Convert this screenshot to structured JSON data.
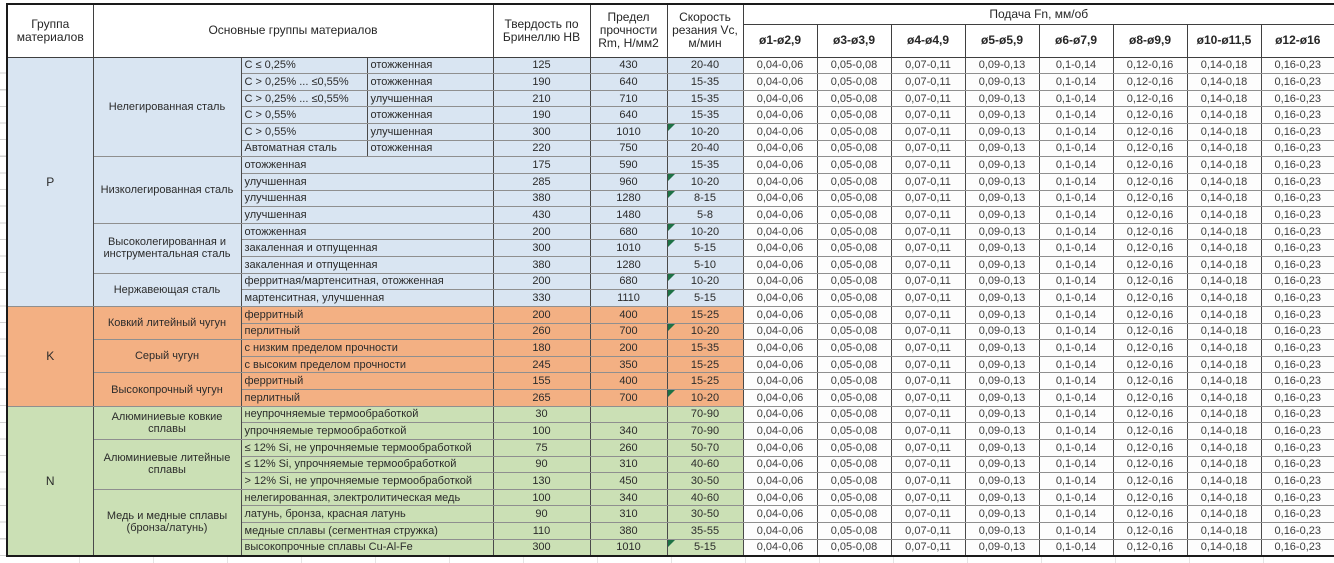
{
  "header": {
    "col_group": "Группа материалов",
    "col_main": "Основные группы материалов",
    "col_hb": "Твердость по Бринеллю HB",
    "col_rm": "Предел прочности Rm, Н/мм2",
    "col_vc": "Скорость резания Vc, м/мин",
    "feed_title": "Подача Fn, мм/об",
    "feed_cols": [
      "ø1-ø2,9",
      "ø3-ø3,9",
      "ø4-ø4,9",
      "ø5-ø5,9",
      "ø6-ø7,9",
      "ø8-ø9,9",
      "ø10-ø11,5",
      "ø12-ø16"
    ]
  },
  "feed_values": [
    "0,04-0,06",
    "0,05-0,08",
    "0,07-0,11",
    "0,09-0,13",
    "0,1-0,14",
    "0,12-0,16",
    "0,14-0,18",
    "0,16-0,23"
  ],
  "flag_color": "#1e7145",
  "groups": [
    {
      "letter": "P",
      "color": "#d9e5f2",
      "subgroups": [
        {
          "name": "Нелегированная сталь",
          "split": true,
          "rows": [
            {
              "spec": "C ≤ 0,25%",
              "state": "отожженная",
              "hb": "125",
              "rm": "430",
              "vc": "20-40",
              "flag": false
            },
            {
              "spec": "C > 0,25% ... ≤0,55%",
              "state": "отожженная",
              "hb": "190",
              "rm": "640",
              "vc": "15-35",
              "flag": false
            },
            {
              "spec": "C > 0,25% ... ≤0,55%",
              "state": "улучшенная",
              "hb": "210",
              "rm": "710",
              "vc": "15-35",
              "flag": false
            },
            {
              "spec": "C > 0,55%",
              "state": "отожженная",
              "hb": "190",
              "rm": "640",
              "vc": "15-35",
              "flag": false
            },
            {
              "spec": "C > 0,55%",
              "state": "улучшенная",
              "hb": "300",
              "rm": "1010",
              "vc": "10-20",
              "flag": true
            },
            {
              "spec": "Автоматная сталь",
              "state": "отожженная",
              "hb": "220",
              "rm": "750",
              "vc": "20-40",
              "flag": false
            }
          ]
        },
        {
          "name": "Низколегированная сталь",
          "split": false,
          "rows": [
            {
              "desc": "отожженная",
              "hb": "175",
              "rm": "590",
              "vc": "15-35",
              "flag": false
            },
            {
              "desc": "улучшенная",
              "hb": "285",
              "rm": "960",
              "vc": "10-20",
              "flag": true
            },
            {
              "desc": "улучшенная",
              "hb": "380",
              "rm": "1280",
              "vc": "8-15",
              "flag": true
            },
            {
              "desc": "улучшенная",
              "hb": "430",
              "rm": "1480",
              "vc": "5-8",
              "flag": false
            }
          ]
        },
        {
          "name": "Высоколегированная и инструментальная сталь",
          "split": false,
          "rows": [
            {
              "desc": "отожженная",
              "hb": "200",
              "rm": "680",
              "vc": "10-20",
              "flag": true
            },
            {
              "desc": "закаленная и отпущенная",
              "hb": "300",
              "rm": "1010",
              "vc": "5-15",
              "flag": true
            },
            {
              "desc": "закаленная и отпущенная",
              "hb": "380",
              "rm": "1280",
              "vc": "5-10",
              "flag": false
            }
          ]
        },
        {
          "name": "Нержавеющая сталь",
          "split": false,
          "rows": [
            {
              "desc": "ферритная/мартенситная, отожженная",
              "hb": "200",
              "rm": "680",
              "vc": "10-20",
              "flag": true
            },
            {
              "desc": "мартенситная, улучшенная",
              "hb": "330",
              "rm": "1110",
              "vc": "5-15",
              "flag": true
            }
          ]
        }
      ]
    },
    {
      "letter": "K",
      "color": "#f3b083",
      "subgroups": [
        {
          "name": "Ковкий литейный чугун",
          "split": false,
          "rows": [
            {
              "desc": "ферритный",
              "hb": "200",
              "rm": "400",
              "vc": "15-25",
              "flag": false
            },
            {
              "desc": "перлитный",
              "hb": "260",
              "rm": "700",
              "vc": "10-20",
              "flag": true
            }
          ]
        },
        {
          "name": "Серый чугун",
          "split": false,
          "rows": [
            {
              "desc": "с низким пределом прочности",
              "hb": "180",
              "rm": "200",
              "vc": "15-35",
              "flag": false
            },
            {
              "desc": "с высоким пределом прочности",
              "hb": "245",
              "rm": "350",
              "vc": "15-25",
              "flag": false
            }
          ]
        },
        {
          "name": "Высокопрочный чугун",
          "split": false,
          "rows": [
            {
              "desc": "ферритный",
              "hb": "155",
              "rm": "400",
              "vc": "15-25",
              "flag": false
            },
            {
              "desc": "перлитный",
              "hb": "265",
              "rm": "700",
              "vc": "10-20",
              "flag": true
            }
          ]
        }
      ]
    },
    {
      "letter": "N",
      "color": "#cbe0b5",
      "subgroups": [
        {
          "name": "Алюминиевые ковкие сплавы",
          "split": false,
          "rows": [
            {
              "desc": "неупрочняемые термообработкой",
              "hb": "30",
              "rm": "",
              "vc": "70-90",
              "flag": false
            },
            {
              "desc": "упрочняемые термообработкой",
              "hb": "100",
              "rm": "340",
              "vc": "70-90",
              "flag": false
            }
          ]
        },
        {
          "name": "Алюминиевые литейные сплавы",
          "split": false,
          "rows": [
            {
              "desc": "≤ 12% Si, не упрочняемые термообработкой",
              "hb": "75",
              "rm": "260",
              "vc": "50-70",
              "flag": false
            },
            {
              "desc": "≤ 12% Si, упрочняемые термообработкой",
              "hb": "90",
              "rm": "310",
              "vc": "40-60",
              "flag": false
            },
            {
              "desc": "> 12% Si, не упрочняемые термообработкой",
              "hb": "130",
              "rm": "450",
              "vc": "30-50",
              "flag": false
            }
          ]
        },
        {
          "name": "Медь и медные сплавы (бронза/латунь)",
          "split": false,
          "rows": [
            {
              "desc": "нелегированная, электролитическая медь",
              "hb": "100",
              "rm": "340",
              "vc": "40-60",
              "flag": false
            },
            {
              "desc": "латунь, бронза, красная латунь",
              "hb": "90",
              "rm": "310",
              "vc": "30-50",
              "flag": false
            },
            {
              "desc": "медные сплавы (сегментная стружка)",
              "hb": "110",
              "rm": "380",
              "vc": "35-55",
              "flag": false
            },
            {
              "desc": "высокопрочные сплавы Cu-Al-Fe",
              "hb": "300",
              "rm": "1010",
              "vc": "5-15",
              "flag": true
            }
          ]
        }
      ]
    }
  ]
}
